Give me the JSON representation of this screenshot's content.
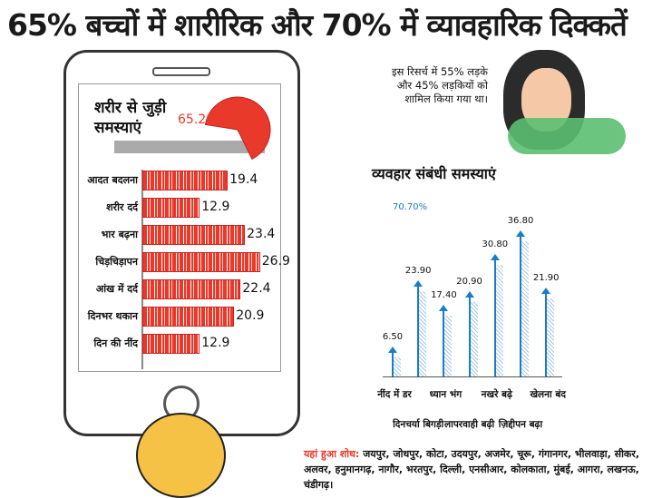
{
  "title": "65% बच्चों में शारीरिक और 70% में व्यावहारिक दिक्कतें",
  "note": "इस रिसर्च में 55% लड़के और 45% लड़कियों को शामिल किया गया था।",
  "places": {
    "lead": "यहां हुआ शोध:",
    "text": " जयपुर, जोधपुर, कोटा, उदयपुर, अजमेर, चूरू, गंगानगर, भीलवाड़ा, सीकर, अलवर, हनुमानगढ़, नागौर, भरतपुर, दिल्ली, एनसीआर, कोलकाता, मुंबई, आगरा, लखनऊ, चंडीगढ़।"
  },
  "colors": {
    "red": "#e8392a",
    "blue": "#1a7cc9"
  },
  "chart_data": [
    {
      "type": "pie",
      "title": "शरीर से जुड़ी समस्याएं",
      "value": 65.2,
      "label": "65.20%"
    },
    {
      "type": "bar",
      "orientation": "horizontal",
      "categories": [
        "आदत बदलना",
        "शरीर दर्द",
        "भार बढ़ना",
        "चिड़चिड़ापन",
        "आंख में दर्द",
        "दिनभर थकान",
        "दिन की नींद"
      ],
      "values": [
        19.4,
        12.9,
        23.4,
        26.9,
        22.4,
        20.9,
        12.9
      ],
      "labels": [
        "19.4",
        "12.9",
        "23.4",
        "26.9",
        "22.4",
        "20.9",
        "12.9"
      ]
    },
    {
      "type": "bar",
      "title": "व्यवहार संबंधी समस्याएं",
      "total_label": "70.70%",
      "categories": [
        "नींद में डर",
        "दिनचर्या बिगड़ी",
        "ध्यान भंग",
        "लापरवाही बढ़ी",
        "नखरे बढ़े",
        "ज़िद्दीपन बढ़ा",
        "खेलना बंद"
      ],
      "values": [
        6.5,
        23.9,
        17.4,
        20.9,
        30.8,
        36.8,
        21.9
      ],
      "labels": [
        "6.50",
        "23.90",
        "17.40",
        "20.90",
        "30.80",
        "36.80",
        "21.90"
      ]
    }
  ]
}
